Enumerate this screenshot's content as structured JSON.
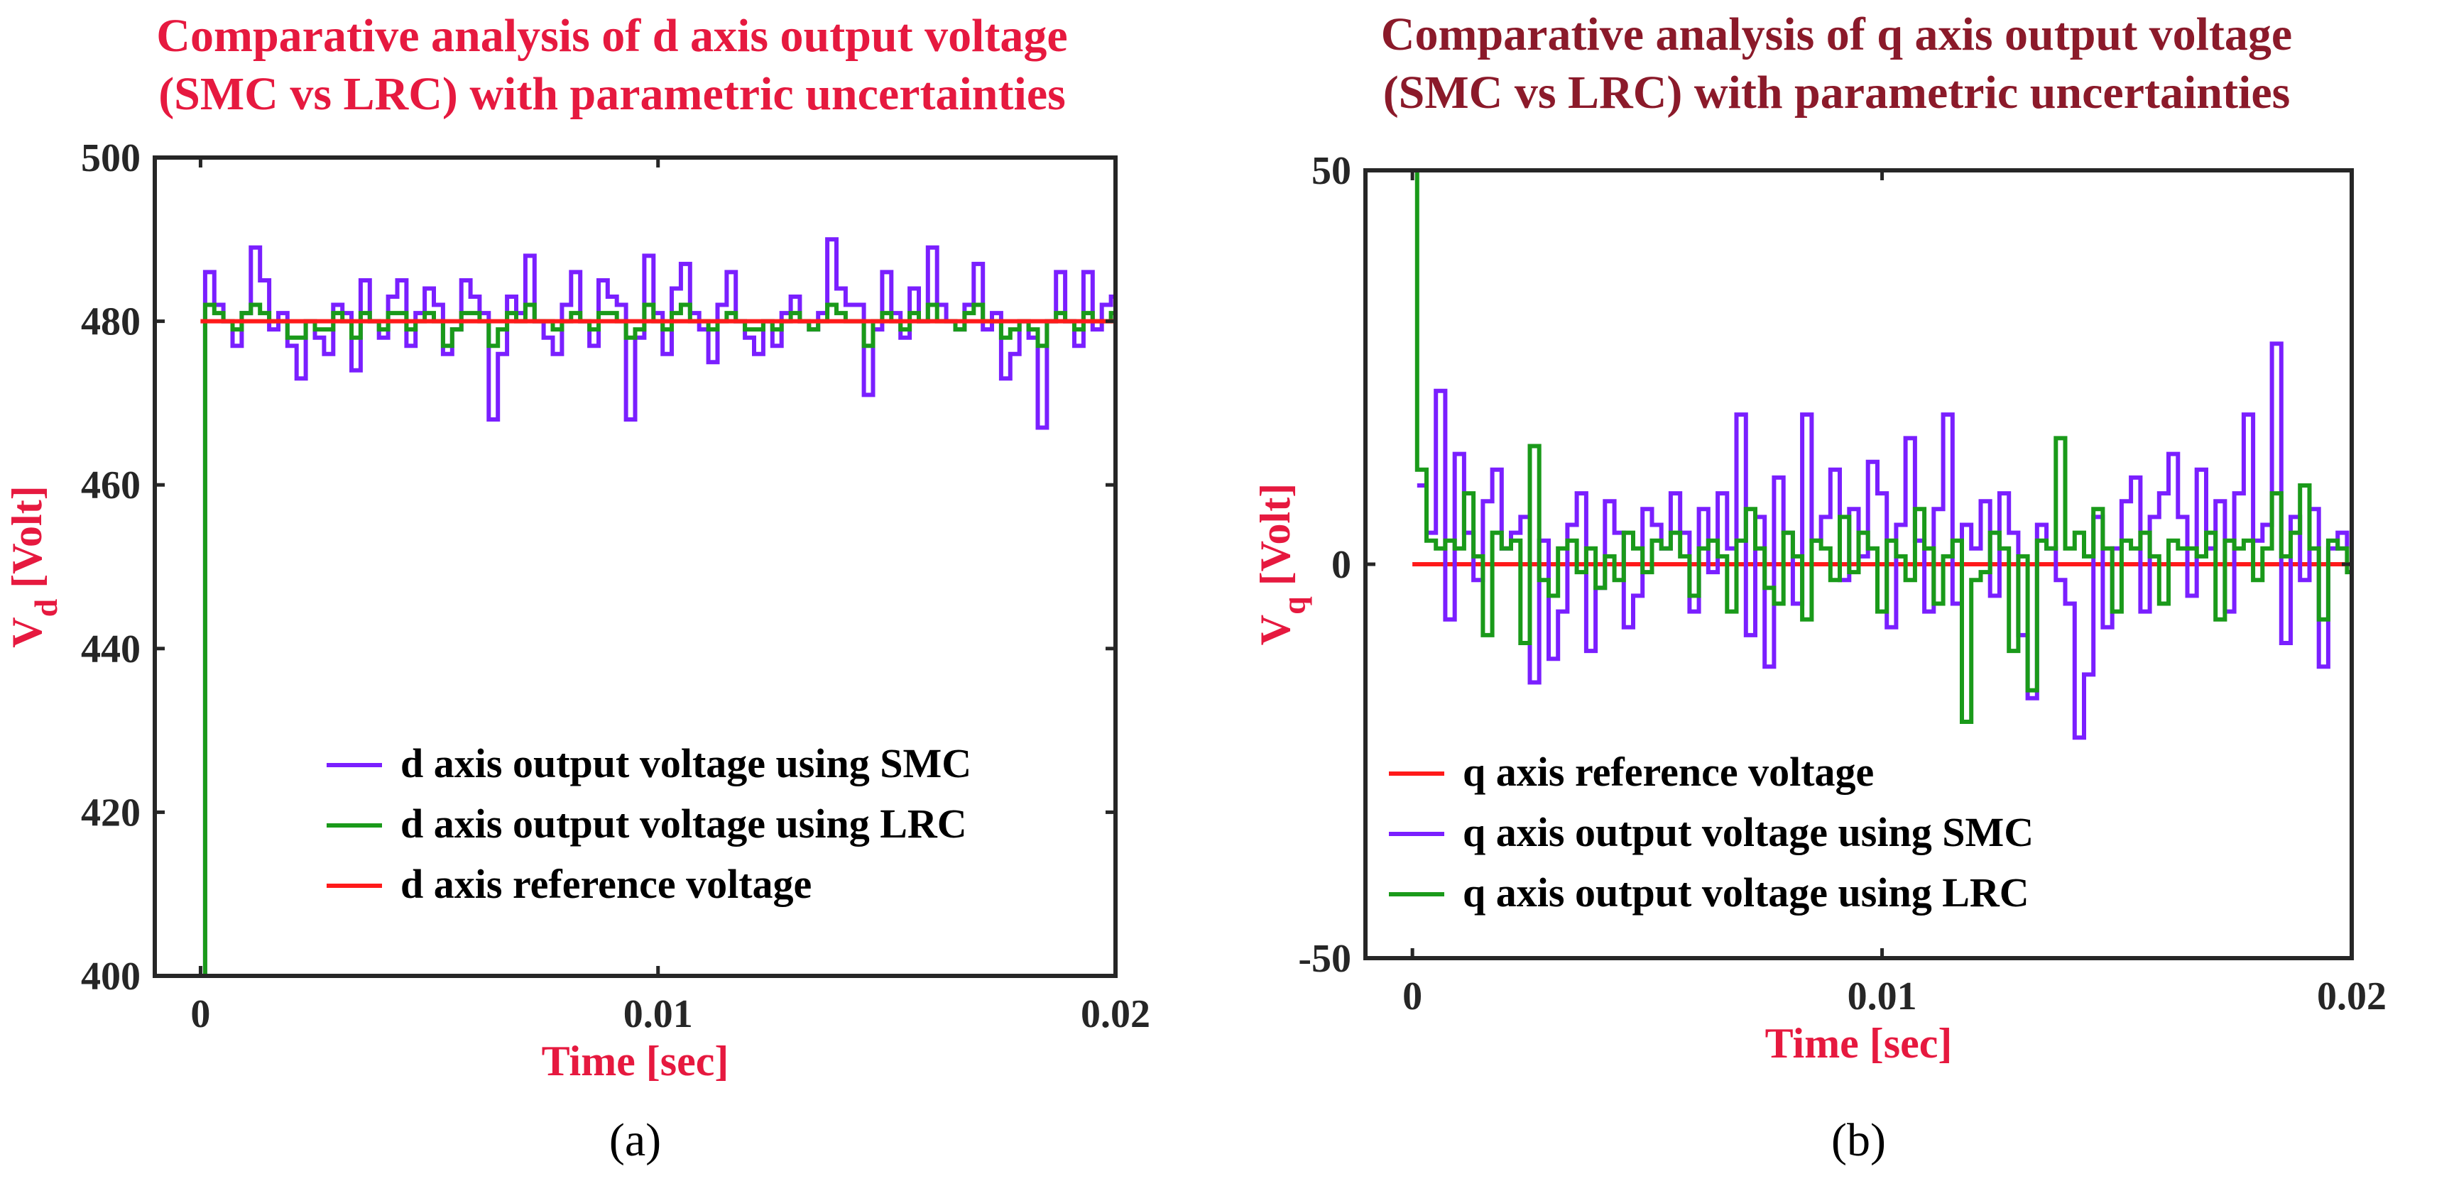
{
  "chart_data": [
    {
      "id": "a",
      "type": "line",
      "title_lines": [
        "Comparative analysis of d axis output voltage",
        "(SMC vs LRC) with parametric uncertainties"
      ],
      "xlabel": "Time [sec]",
      "ylabel_main": "V",
      "ylabel_sub": "d",
      "ylabel_unit": " [Volt]",
      "caption": "(a)",
      "xlim": [
        -0.001,
        0.02
      ],
      "ylim": [
        400,
        500
      ],
      "xticks": [
        0,
        0.01,
        0.02
      ],
      "xtick_labels": [
        "0",
        "0.01",
        "0.02"
      ],
      "yticks": [
        400,
        420,
        440,
        460,
        480,
        500
      ],
      "ytick_labels": [
        "400",
        "420",
        "440",
        "460",
        "480",
        "500"
      ],
      "legend_position": "bottom-right",
      "legend_order": [
        "SMC",
        "LRC",
        "REF"
      ],
      "series": [
        {
          "key": "SMC",
          "name": "d axis output voltage using SMC",
          "color": "#7a1fff",
          "x": [
            0,
            0.0001,
            0.0003,
            0.0005,
            0.0007,
            0.0009,
            0.0011,
            0.0013,
            0.0015,
            0.0017,
            0.0019,
            0.0021,
            0.0023,
            0.0025,
            0.0027,
            0.0029,
            0.0031,
            0.0033,
            0.0035,
            0.0037,
            0.0039,
            0.0041,
            0.0043,
            0.0045,
            0.0047,
            0.0049,
            0.0051,
            0.0053,
            0.0055,
            0.0057,
            0.0059,
            0.0061,
            0.0063,
            0.0065,
            0.0067,
            0.0069,
            0.0071,
            0.0073,
            0.0075,
            0.0077,
            0.0079,
            0.0081,
            0.0083,
            0.0085,
            0.0087,
            0.0089,
            0.0091,
            0.0093,
            0.0095,
            0.0097,
            0.0099,
            0.0101,
            0.0103,
            0.0105,
            0.0107,
            0.0109,
            0.0111,
            0.0113,
            0.0115,
            0.0117,
            0.0119,
            0.0121,
            0.0123,
            0.0125,
            0.0127,
            0.0129,
            0.0131,
            0.0133,
            0.0135,
            0.0137,
            0.0139,
            0.0141,
            0.0143,
            0.0145,
            0.0147,
            0.0149,
            0.0151,
            0.0153,
            0.0155,
            0.0157,
            0.0159,
            0.0161,
            0.0163,
            0.0165,
            0.0167,
            0.0169,
            0.0171,
            0.0173,
            0.0175,
            0.0177,
            0.0179,
            0.0181,
            0.0183,
            0.0185,
            0.0187,
            0.0189,
            0.0191,
            0.0193,
            0.0195,
            0.0197,
            0.0199,
            0.02
          ],
          "y": [
            400,
            486,
            482,
            480,
            477,
            481,
            489,
            485,
            479,
            481,
            477,
            473,
            480,
            478,
            476,
            482,
            481,
            474,
            485,
            480,
            478,
            483,
            485,
            477,
            481,
            484,
            482,
            476,
            479,
            485,
            483,
            481,
            468,
            476,
            483,
            481,
            488,
            480,
            478,
            476,
            482,
            486,
            480,
            477,
            485,
            483,
            482,
            468,
            478,
            488,
            481,
            476,
            484,
            487,
            481,
            479,
            475,
            482,
            486,
            480,
            478,
            476,
            480,
            477,
            481,
            483,
            480,
            479,
            481,
            490,
            484,
            482,
            482,
            471,
            479,
            486,
            481,
            478,
            484,
            480,
            489,
            482,
            480,
            479,
            482,
            487,
            479,
            481,
            473,
            476,
            480,
            478,
            467,
            480,
            486,
            480,
            477,
            486,
            479,
            482,
            483,
            482
          ]
        },
        {
          "key": "LRC",
          "name": "d axis output voltage using LRC",
          "color": "#1a9a1a",
          "x": [
            0,
            0.0001,
            0.0003,
            0.0005,
            0.0007,
            0.0009,
            0.0011,
            0.0013,
            0.0015,
            0.0017,
            0.0019,
            0.0021,
            0.0023,
            0.0025,
            0.0027,
            0.0029,
            0.0031,
            0.0033,
            0.0035,
            0.0037,
            0.0039,
            0.0041,
            0.0043,
            0.0045,
            0.0047,
            0.0049,
            0.0051,
            0.0053,
            0.0055,
            0.0057,
            0.0059,
            0.0061,
            0.0063,
            0.0065,
            0.0067,
            0.0069,
            0.0071,
            0.0073,
            0.0075,
            0.0077,
            0.0079,
            0.0081,
            0.0083,
            0.0085,
            0.0087,
            0.0089,
            0.0091,
            0.0093,
            0.0095,
            0.0097,
            0.0099,
            0.0101,
            0.0103,
            0.0105,
            0.0107,
            0.0109,
            0.0111,
            0.0113,
            0.0115,
            0.0117,
            0.0119,
            0.0121,
            0.0123,
            0.0125,
            0.0127,
            0.0129,
            0.0131,
            0.0133,
            0.0135,
            0.0137,
            0.0139,
            0.0141,
            0.0143,
            0.0145,
            0.0147,
            0.0149,
            0.0151,
            0.0153,
            0.0155,
            0.0157,
            0.0159,
            0.0161,
            0.0163,
            0.0165,
            0.0167,
            0.0169,
            0.0171,
            0.0173,
            0.0175,
            0.0177,
            0.0179,
            0.0181,
            0.0183,
            0.0185,
            0.0187,
            0.0189,
            0.0191,
            0.0193,
            0.0195,
            0.0197,
            0.0199,
            0.02
          ],
          "y": [
            400,
            482,
            481,
            480,
            479,
            481,
            482,
            481,
            480,
            480,
            478,
            478,
            480,
            479,
            479,
            481,
            480,
            478,
            481,
            480,
            479,
            481,
            481,
            479,
            480,
            481,
            480,
            477,
            479,
            481,
            481,
            480,
            477,
            479,
            481,
            480,
            482,
            480,
            480,
            479,
            480,
            481,
            480,
            479,
            481,
            481,
            480,
            478,
            479,
            482,
            480,
            479,
            481,
            482,
            480,
            480,
            479,
            480,
            481,
            480,
            479,
            479,
            480,
            479,
            480,
            481,
            480,
            479,
            480,
            482,
            481,
            480,
            480,
            477,
            480,
            481,
            480,
            479,
            481,
            480,
            482,
            480,
            480,
            479,
            481,
            482,
            480,
            480,
            478,
            479,
            480,
            479,
            477,
            480,
            481,
            480,
            479,
            481,
            480,
            480,
            481,
            480
          ]
        },
        {
          "key": "REF",
          "name": "d axis reference voltage",
          "color": "#ff1a1a",
          "x": [
            0,
            0.02
          ],
          "y": [
            480,
            480
          ]
        }
      ]
    },
    {
      "id": "b",
      "type": "line",
      "title_lines": [
        "Comparative analysis of q axis output voltage",
        "(SMC vs LRC) with parametric uncertainties"
      ],
      "xlabel": "Time [sec]",
      "ylabel_main": "V",
      "ylabel_sub": "q",
      "ylabel_unit": " [Volt]",
      "caption": "(b)",
      "xlim": [
        -0.001,
        0.02
      ],
      "ylim": [
        -50,
        50
      ],
      "xticks": [
        0,
        0.01,
        0.02
      ],
      "xtick_labels": [
        "0",
        "0.01",
        "0.02"
      ],
      "yticks": [
        -50,
        0,
        50
      ],
      "ytick_labels": [
        "-50",
        "0",
        "50"
      ],
      "legend_position": "bottom-left",
      "legend_order": [
        "REF",
        "SMC",
        "LRC"
      ],
      "series": [
        {
          "key": "REF",
          "name": "q axis reference voltage",
          "color": "#ff1a1a",
          "x": [
            0,
            0.02
          ],
          "y": [
            0,
            0
          ]
        },
        {
          "key": "SMC",
          "name": "q axis output voltage using SMC",
          "color": "#7a1fff",
          "x": [
            0.0001,
            0.0003,
            0.0005,
            0.0007,
            0.0009,
            0.0011,
            0.0013,
            0.0015,
            0.0017,
            0.0019,
            0.0021,
            0.0023,
            0.0025,
            0.0027,
            0.0029,
            0.0031,
            0.0033,
            0.0035,
            0.0037,
            0.0039,
            0.0041,
            0.0043,
            0.0045,
            0.0047,
            0.0049,
            0.0051,
            0.0053,
            0.0055,
            0.0057,
            0.0059,
            0.0061,
            0.0063,
            0.0065,
            0.0067,
            0.0069,
            0.0071,
            0.0073,
            0.0075,
            0.0077,
            0.0079,
            0.0081,
            0.0083,
            0.0085,
            0.0087,
            0.0089,
            0.0091,
            0.0093,
            0.0095,
            0.0097,
            0.0099,
            0.0101,
            0.0103,
            0.0105,
            0.0107,
            0.0109,
            0.0111,
            0.0113,
            0.0115,
            0.0117,
            0.0119,
            0.0121,
            0.0123,
            0.0125,
            0.0127,
            0.0129,
            0.0131,
            0.0133,
            0.0135,
            0.0137,
            0.0139,
            0.0141,
            0.0143,
            0.0145,
            0.0147,
            0.0149,
            0.0151,
            0.0153,
            0.0155,
            0.0157,
            0.0159,
            0.0161,
            0.0163,
            0.0165,
            0.0167,
            0.0169,
            0.0171,
            0.0173,
            0.0175,
            0.0177,
            0.0179,
            0.0181,
            0.0183,
            0.0185,
            0.0187,
            0.0189,
            0.0191,
            0.0193,
            0.0195,
            0.0197,
            0.0199
          ],
          "y": [
            10,
            4,
            22,
            -7,
            14,
            4,
            -2,
            8,
            12,
            2,
            4,
            6,
            -15,
            3,
            -12,
            -6,
            5,
            9,
            -11,
            -3,
            8,
            4,
            -8,
            -4,
            7,
            5,
            2,
            9,
            4,
            -6,
            7,
            -1,
            9,
            2,
            19,
            -9,
            6,
            -13,
            11,
            4,
            -5,
            19,
            3,
            6,
            12,
            -2,
            7,
            1,
            13,
            9,
            -8,
            5,
            16,
            3,
            -6,
            7,
            19,
            -5,
            5,
            2,
            8,
            -4,
            9,
            4,
            -9,
            -17,
            5,
            2,
            -2,
            -5,
            -22,
            -14,
            6,
            -8,
            2,
            8,
            11,
            -6,
            6,
            9,
            14,
            6,
            -4,
            12,
            2,
            8,
            -6,
            9,
            19,
            3,
            5,
            28,
            -10,
            6,
            -2,
            7,
            -13,
            2,
            4,
            2
          ]
        },
        {
          "key": "LRC",
          "name": "q axis output voltage using LRC",
          "color": "#1a9a1a",
          "x": [
            0,
            0.0001,
            0.0003,
            0.0005,
            0.0007,
            0.0009,
            0.0011,
            0.0013,
            0.0015,
            0.0017,
            0.0019,
            0.0021,
            0.0023,
            0.0025,
            0.0027,
            0.0029,
            0.0031,
            0.0033,
            0.0035,
            0.0037,
            0.0039,
            0.0041,
            0.0043,
            0.0045,
            0.0047,
            0.0049,
            0.0051,
            0.0053,
            0.0055,
            0.0057,
            0.0059,
            0.0061,
            0.0063,
            0.0065,
            0.0067,
            0.0069,
            0.0071,
            0.0073,
            0.0075,
            0.0077,
            0.0079,
            0.0081,
            0.0083,
            0.0085,
            0.0087,
            0.0089,
            0.0091,
            0.0093,
            0.0095,
            0.0097,
            0.0099,
            0.0101,
            0.0103,
            0.0105,
            0.0107,
            0.0109,
            0.0111,
            0.0113,
            0.0115,
            0.0117,
            0.0119,
            0.0121,
            0.0123,
            0.0125,
            0.0127,
            0.0129,
            0.0131,
            0.0133,
            0.0135,
            0.0137,
            0.0139,
            0.0141,
            0.0143,
            0.0145,
            0.0147,
            0.0149,
            0.0151,
            0.0153,
            0.0155,
            0.0157,
            0.0159,
            0.0161,
            0.0163,
            0.0165,
            0.0167,
            0.0169,
            0.0171,
            0.0173,
            0.0175,
            0.0177,
            0.0179,
            0.0181,
            0.0183,
            0.0185,
            0.0187,
            0.0189,
            0.0191,
            0.0193,
            0.0195,
            0.0197,
            0.0199,
            0.02
          ],
          "y": [
            50,
            12,
            3,
            2,
            3,
            2,
            9,
            1,
            -9,
            4,
            2,
            3,
            -10,
            15,
            -2,
            -4,
            2,
            3,
            -1,
            2,
            -3,
            1,
            -2,
            4,
            2,
            -1,
            3,
            2,
            4,
            1,
            -4,
            2,
            3,
            1,
            -6,
            3,
            7,
            2,
            -3,
            -5,
            4,
            1,
            -7,
            3,
            2,
            -2,
            6,
            -1,
            4,
            2,
            -6,
            3,
            1,
            -2,
            7,
            2,
            -5,
            1,
            3,
            -20,
            -2,
            -1,
            4,
            2,
            -11,
            1,
            -16,
            3,
            2,
            16,
            2,
            4,
            1,
            7,
            2,
            -6,
            3,
            2,
            4,
            1,
            -5,
            3,
            2,
            2,
            1,
            4,
            -7,
            3,
            2,
            3,
            -2,
            2,
            9,
            1,
            4,
            10,
            2,
            -7,
            3,
            2,
            -1,
            -2
          ]
        }
      ]
    }
  ]
}
